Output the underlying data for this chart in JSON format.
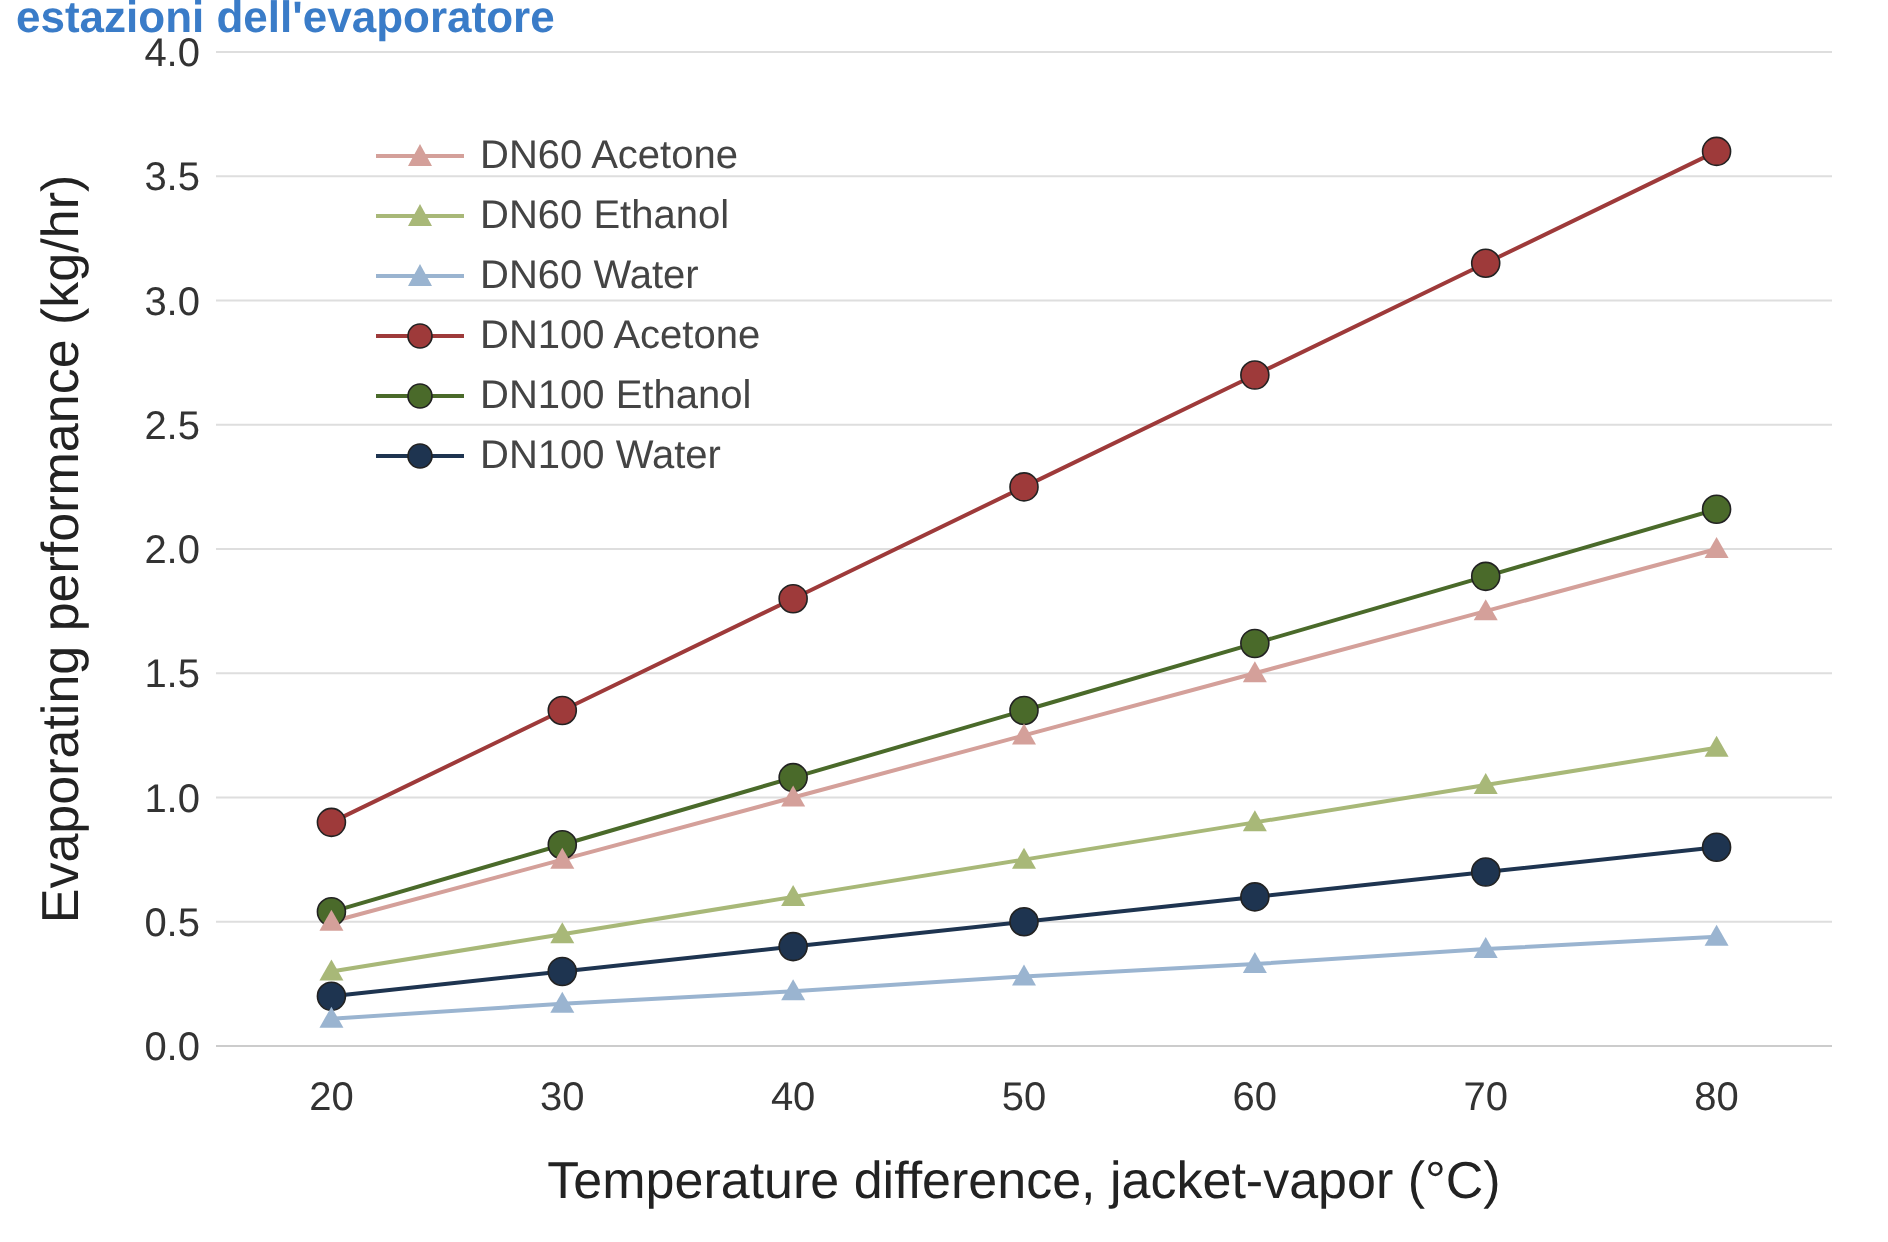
{
  "chart_data": {
    "type": "line",
    "title": "estazioni dell'evaporatore",
    "xlabel": "Temperature difference, jacket-vapor (°C)",
    "ylabel": "Evaporating performance (kg/hr)",
    "x": [
      20,
      30,
      40,
      50,
      60,
      70,
      80
    ],
    "xlim": [
      15,
      85
    ],
    "xticks": [
      20,
      30,
      40,
      50,
      60,
      70,
      80
    ],
    "ylim": [
      0,
      4
    ],
    "yticks": [
      {
        "value": 0,
        "label": "0.0"
      },
      {
        "value": 0.5,
        "label": "0.5"
      },
      {
        "value": 1,
        "label": "1.0"
      },
      {
        "value": 1.5,
        "label": "1.5"
      },
      {
        "value": 2,
        "label": "2.0"
      },
      {
        "value": 2.5,
        "label": "2.5"
      },
      {
        "value": 3,
        "label": "3.0"
      },
      {
        "value": 3.5,
        "label": "3.5"
      },
      {
        "value": 4,
        "label": "4.0"
      }
    ],
    "grid": "y",
    "legend": "top left",
    "line_style": "solid",
    "series": [
      {
        "name": "DN60 Acetone",
        "color": "#d4a09a",
        "marker": "triangle",
        "values": [
          0.5,
          0.75,
          1.0,
          1.25,
          1.5,
          1.75,
          2.0
        ]
      },
      {
        "name": "DN60 Ethanol",
        "color": "#a8b878",
        "marker": "triangle",
        "values": [
          0.3,
          0.45,
          0.6,
          0.75,
          0.9,
          1.05,
          1.2
        ]
      },
      {
        "name": "DN60 Water",
        "color": "#9ab4d0",
        "marker": "triangle",
        "values": [
          0.11,
          0.17,
          0.22,
          0.28,
          0.33,
          0.39,
          0.44
        ]
      },
      {
        "name": "DN100 Acetone",
        "color": "#9e3a3a",
        "marker": "circle",
        "values": [
          0.9,
          1.35,
          1.8,
          2.25,
          2.7,
          3.15,
          3.6
        ]
      },
      {
        "name": "DN100 Ethanol",
        "color": "#4a6a2a",
        "marker": "circle",
        "values": [
          0.54,
          0.81,
          1.08,
          1.35,
          1.62,
          1.89,
          2.16
        ]
      },
      {
        "name": "DN100 Water",
        "color": "#1e3450",
        "marker": "circle",
        "values": [
          0.2,
          0.3,
          0.4,
          0.5,
          0.6,
          0.7,
          0.8
        ]
      }
    ]
  }
}
